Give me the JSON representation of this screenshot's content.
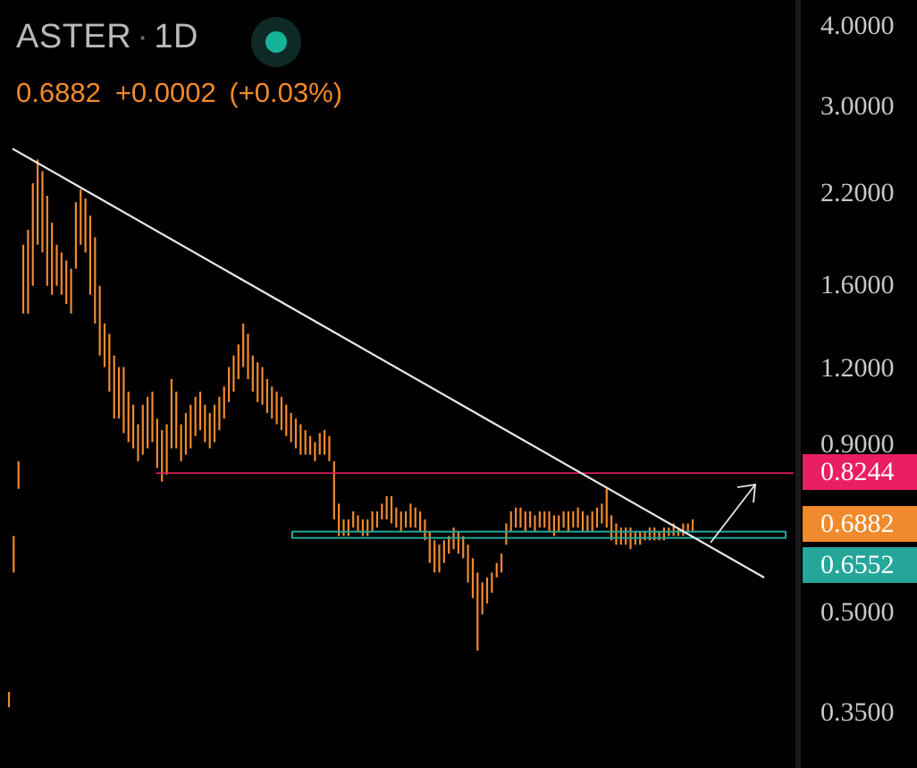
{
  "header": {
    "symbol": "ASTER",
    "separator": "·",
    "interval": "1D",
    "price": "0.6882",
    "change": "+0.0002",
    "change_pct": "(+0.03%)"
  },
  "colors": {
    "background": "#000000",
    "candle": "#f08a2c",
    "trendline": "#e8e8e8",
    "resistance": "#e91e63",
    "support": "#26a69a",
    "live_indicator": "#16b39a"
  },
  "price_axis": {
    "ticks": [
      "4.0000",
      "3.0000",
      "2.2000",
      "1.6000",
      "1.2000",
      "0.9000",
      "0.5000",
      "0.3500"
    ],
    "labels": [
      {
        "value": "0.8244",
        "color": "#e91e63"
      },
      {
        "value": "0.6882",
        "color": "#f08a2c"
      },
      {
        "value": "0.6552",
        "color": "#26a69a"
      }
    ]
  },
  "chart_data": {
    "type": "ohlc",
    "symbol": "ASTER",
    "interval": "1D",
    "y_scale": "log",
    "ylim": [
      0.32,
      4.1
    ],
    "grid": false,
    "bars_high": [
      0.38,
      0.66,
      0.86,
      1.85,
      1.95,
      2.3,
      2.5,
      2.4,
      2.2,
      2.0,
      1.85,
      1.8,
      1.75,
      1.7,
      2.15,
      2.25,
      2.18,
      2.05,
      1.9,
      1.6,
      1.4,
      1.35,
      1.25,
      1.2,
      1.2,
      1.1,
      1.05,
      0.98,
      1.05,
      1.08,
      1.1,
      1.0,
      0.96,
      0.98,
      1.15,
      1.1,
      0.98,
      1.02,
      1.05,
      1.08,
      1.1,
      1.05,
      1.02,
      1.05,
      1.08,
      1.12,
      1.2,
      1.25,
      1.3,
      1.4,
      1.35,
      1.25,
      1.22,
      1.2,
      1.15,
      1.12,
      1.1,
      1.08,
      1.05,
      1.02,
      1.0,
      0.98,
      0.96,
      0.94,
      0.92,
      0.95,
      0.96,
      0.94,
      0.86,
      0.74,
      0.7,
      0.7,
      0.72,
      0.71,
      0.7,
      0.7,
      0.72,
      0.72,
      0.74,
      0.76,
      0.76,
      0.73,
      0.72,
      0.72,
      0.74,
      0.73,
      0.72,
      0.7,
      0.67,
      0.65,
      0.64,
      0.65,
      0.66,
      0.68,
      0.67,
      0.66,
      0.64,
      0.61,
      0.58,
      0.56,
      0.57,
      0.58,
      0.6,
      0.62,
      0.69,
      0.72,
      0.73,
      0.73,
      0.72,
      0.72,
      0.71,
      0.72,
      0.72,
      0.72,
      0.71,
      0.71,
      0.72,
      0.72,
      0.72,
      0.73,
      0.72,
      0.71,
      0.72,
      0.73,
      0.74,
      0.78,
      0.71,
      0.69,
      0.68,
      0.68,
      0.68,
      0.67,
      0.67,
      0.67,
      0.68,
      0.68,
      0.67,
      0.68,
      0.68,
      0.69,
      0.68,
      0.69,
      0.69,
      0.7
    ],
    "bars_low": [
      0.36,
      0.58,
      0.78,
      1.45,
      1.45,
      1.6,
      1.85,
      1.8,
      1.6,
      1.55,
      1.6,
      1.55,
      1.5,
      1.45,
      1.7,
      1.85,
      1.8,
      1.55,
      1.4,
      1.25,
      1.2,
      1.1,
      1.0,
      1.0,
      0.95,
      0.92,
      0.9,
      0.86,
      0.88,
      0.9,
      0.92,
      0.84,
      0.8,
      0.82,
      0.9,
      0.9,
      0.86,
      0.88,
      0.9,
      0.94,
      0.96,
      0.92,
      0.9,
      0.92,
      0.96,
      1.0,
      1.06,
      1.1,
      1.15,
      1.2,
      1.15,
      1.1,
      1.06,
      1.05,
      1.02,
      1.0,
      0.98,
      0.96,
      0.94,
      0.92,
      0.9,
      0.88,
      0.88,
      0.88,
      0.86,
      0.88,
      0.88,
      0.86,
      0.7,
      0.66,
      0.66,
      0.66,
      0.68,
      0.67,
      0.66,
      0.66,
      0.67,
      0.68,
      0.7,
      0.7,
      0.69,
      0.68,
      0.67,
      0.68,
      0.68,
      0.68,
      0.67,
      0.65,
      0.6,
      0.58,
      0.58,
      0.6,
      0.62,
      0.63,
      0.62,
      0.61,
      0.56,
      0.53,
      0.44,
      0.5,
      0.52,
      0.54,
      0.57,
      0.58,
      0.64,
      0.67,
      0.68,
      0.68,
      0.67,
      0.68,
      0.67,
      0.68,
      0.68,
      0.67,
      0.66,
      0.67,
      0.68,
      0.67,
      0.68,
      0.68,
      0.67,
      0.67,
      0.67,
      0.68,
      0.69,
      0.68,
      0.65,
      0.64,
      0.64,
      0.64,
      0.63,
      0.64,
      0.64,
      0.65,
      0.65,
      0.65,
      0.65,
      0.65,
      0.66,
      0.66,
      0.66,
      0.66,
      0.67,
      0.67
    ],
    "trendline": {
      "from": [
        0,
        2.55
      ],
      "to": [
        146,
        0.59
      ]
    },
    "resistance": {
      "price": 0.8244,
      "from_bar": 27,
      "to_bar": 148
    },
    "support_zone": {
      "low": 0.6552,
      "high": 0.666,
      "from_bar": 53,
      "to_bar": 143
    },
    "projection_arrow": {
      "from": [
        126,
        0.66
      ],
      "to": [
        136,
        0.78
      ]
    }
  }
}
